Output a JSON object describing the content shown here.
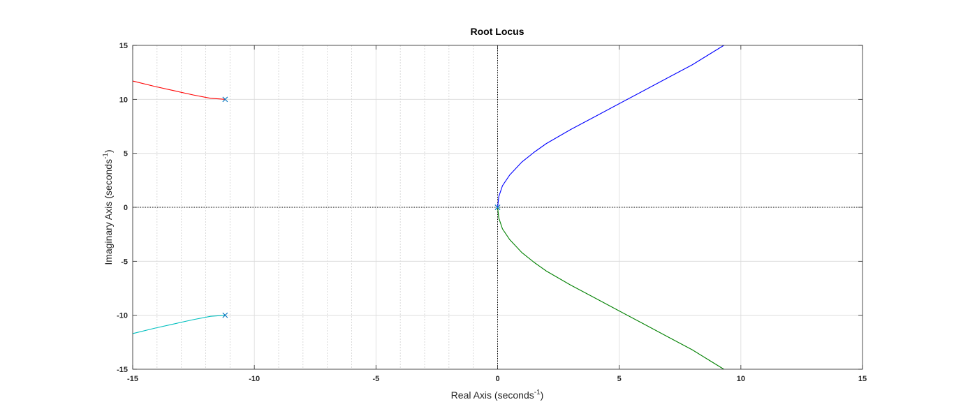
{
  "chart_data": {
    "type": "line",
    "title": "Root Locus",
    "xlabel": {
      "text": "Real Axis (seconds",
      "sup": "-1",
      "tail": ")"
    },
    "ylabel": {
      "text": "Imaginary Axis (seconds",
      "sup": "-1",
      "tail": ")"
    },
    "xlim": [
      -15,
      15
    ],
    "ylim": [
      -15,
      15
    ],
    "xticks": [
      -15,
      -10,
      -5,
      0,
      5,
      10,
      15
    ],
    "yticks": [
      -15,
      -10,
      -5,
      0,
      5,
      10,
      15
    ],
    "grid": true,
    "series": [
      {
        "color": "#ff0000",
        "x": [
          -11.2,
          -11.8,
          -12.5,
          -13.3,
          -14.1,
          -15.0
        ],
        "y": [
          10.0,
          10.1,
          10.4,
          10.8,
          11.2,
          11.7
        ]
      },
      {
        "color": "#00bfbf",
        "x": [
          -11.2,
          -11.8,
          -12.5,
          -13.3,
          -14.1,
          -15.0
        ],
        "y": [
          -10.0,
          -10.1,
          -10.4,
          -10.8,
          -11.2,
          -11.7
        ]
      },
      {
        "color": "#0000ff",
        "x": [
          0,
          0.05,
          0.2,
          0.5,
          1.0,
          1.5,
          2.0,
          3.0,
          4.0,
          5.0,
          6.0,
          7.0,
          8.0,
          9.3
        ],
        "y": [
          0,
          1.0,
          2.0,
          3.0,
          4.2,
          5.1,
          5.9,
          7.2,
          8.4,
          9.6,
          10.8,
          12.0,
          13.2,
          15.0
        ]
      },
      {
        "color": "#008000",
        "x": [
          0,
          0.05,
          0.2,
          0.5,
          1.0,
          1.5,
          2.0,
          3.0,
          4.0,
          5.0,
          6.0,
          7.0,
          8.0,
          9.3
        ],
        "y": [
          0,
          -1.0,
          -2.0,
          -3.0,
          -4.2,
          -5.1,
          -5.9,
          -7.2,
          -8.4,
          -9.6,
          -10.8,
          -12.0,
          -13.2,
          -15.0
        ]
      }
    ],
    "poles": [
      {
        "x": -11.2,
        "y": 10.0
      },
      {
        "x": -11.2,
        "y": -10.0
      },
      {
        "x": 0,
        "y": 0
      },
      {
        "x": 0,
        "y": 0
      }
    ],
    "pole_color": "#0072bd",
    "grid_color": "#d9d9d9"
  }
}
